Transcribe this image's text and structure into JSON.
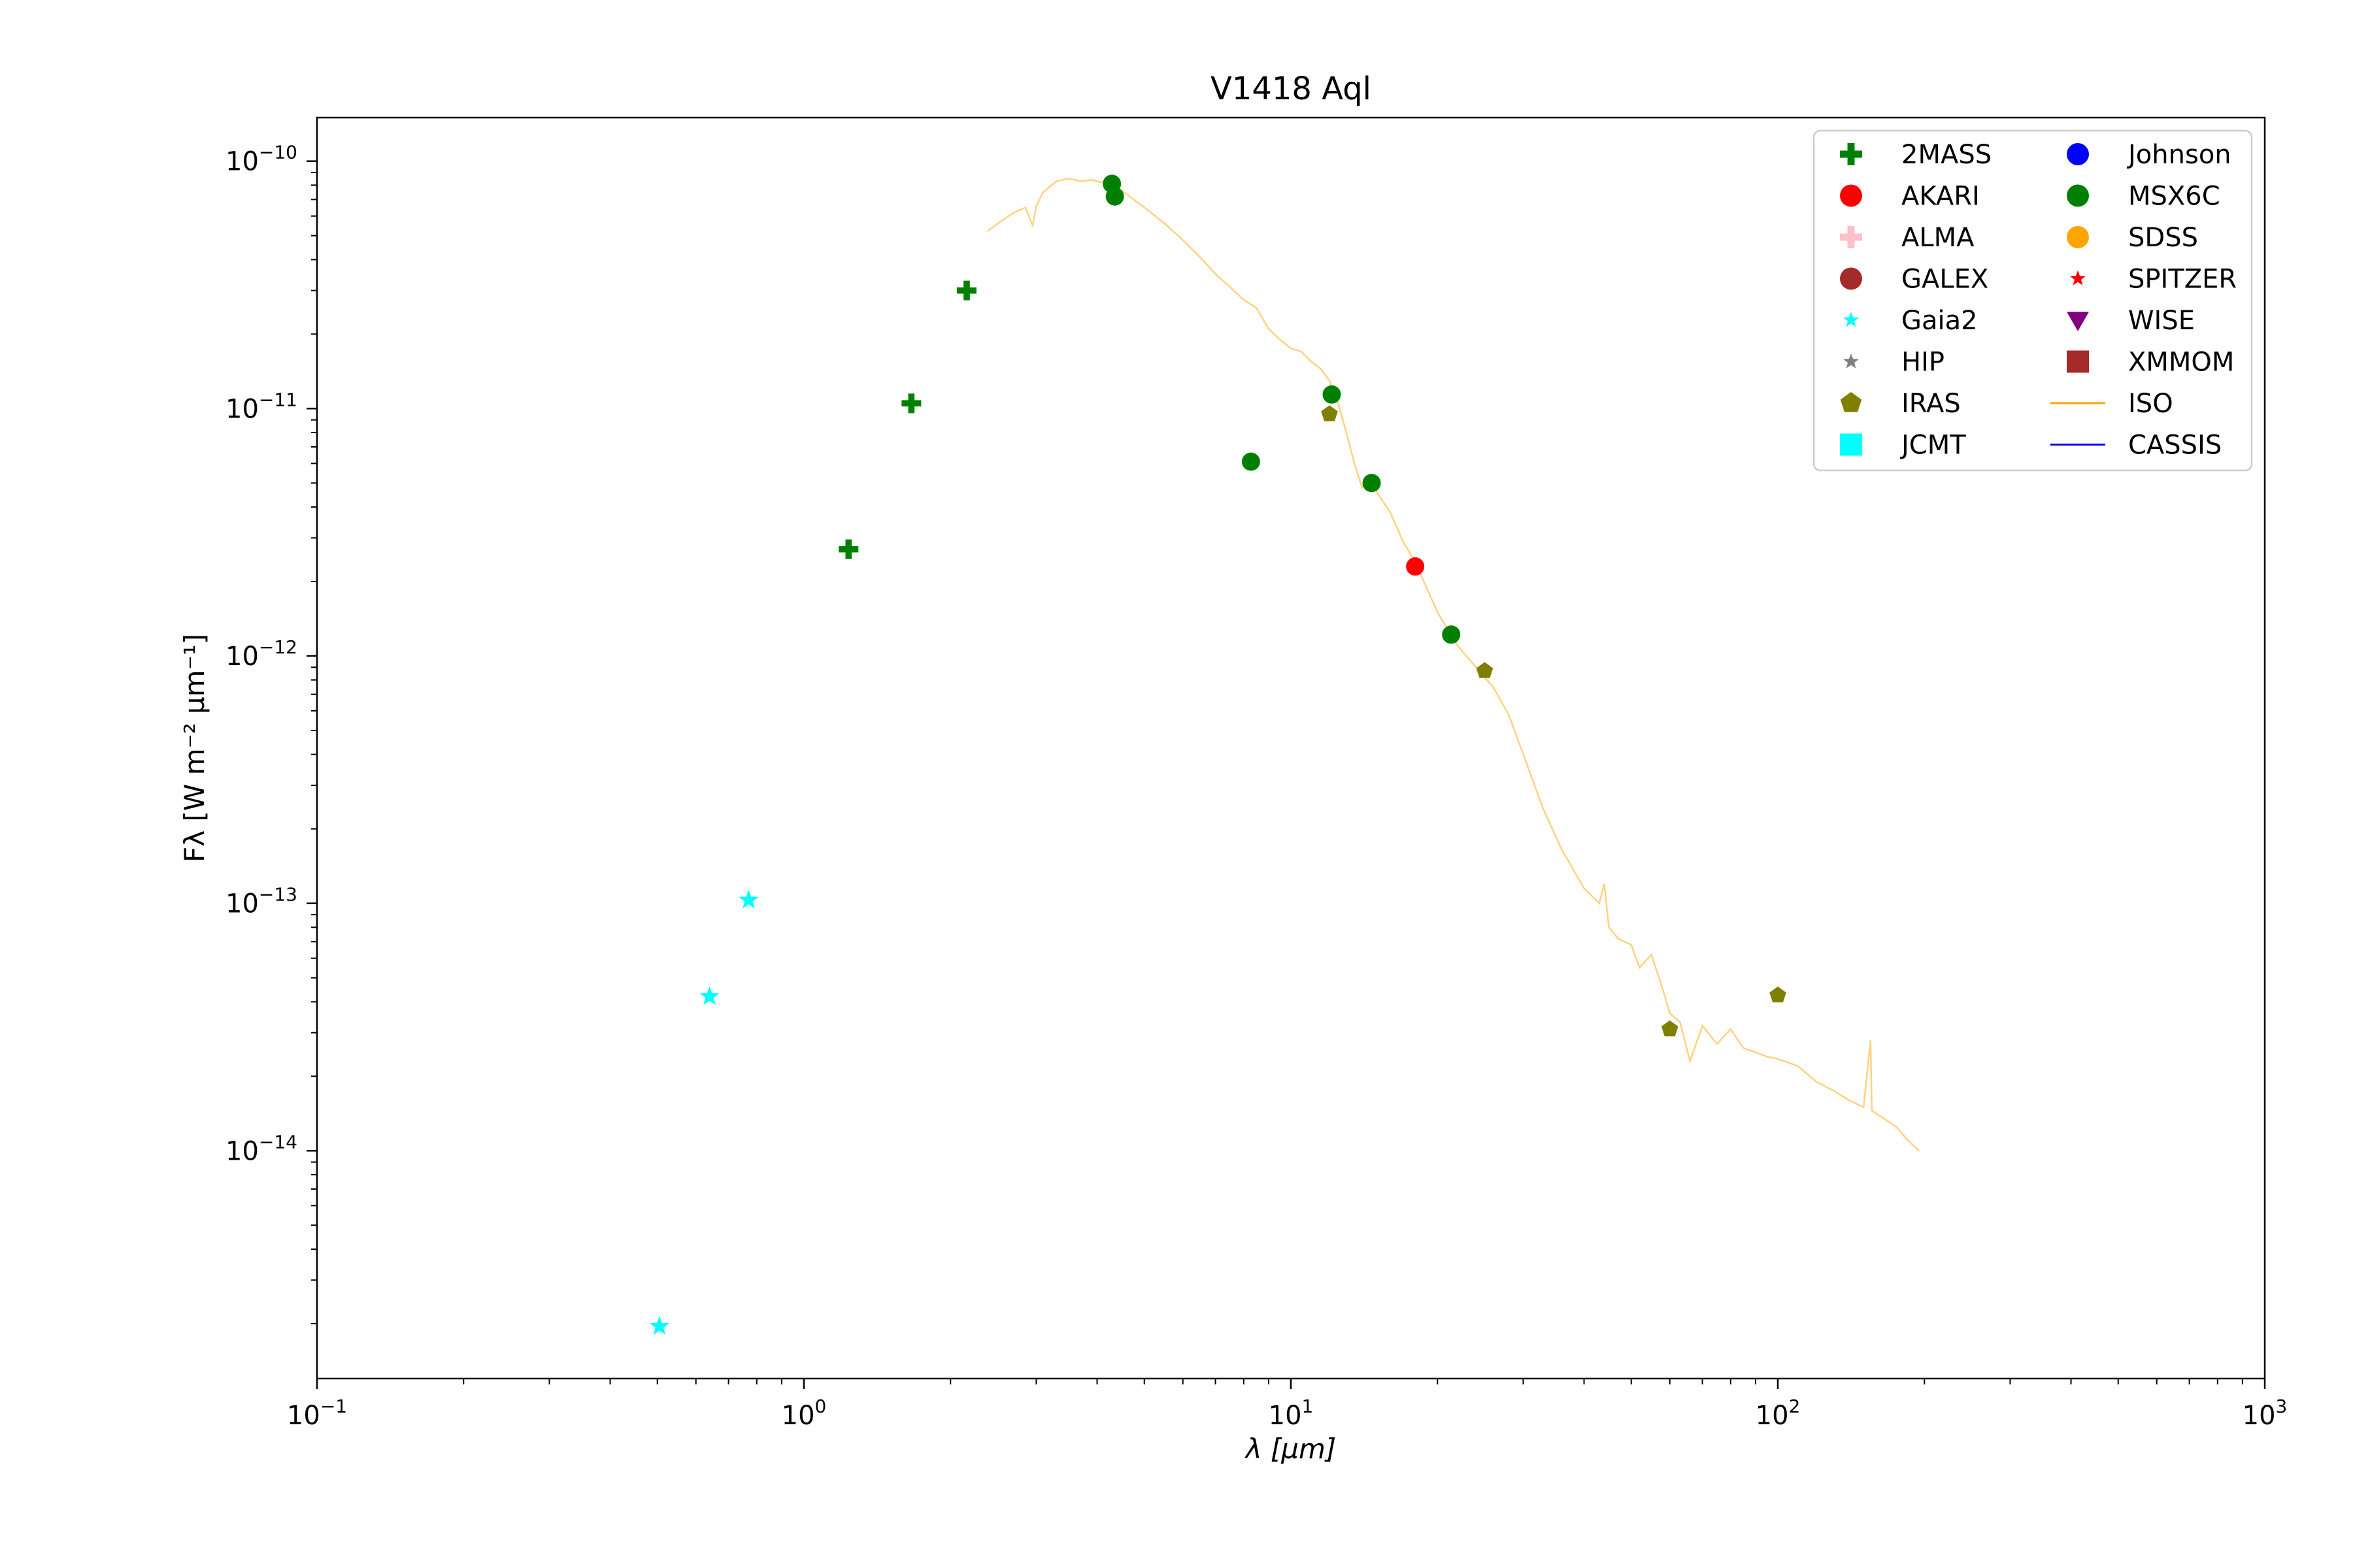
{
  "chart_data": {
    "type": "scatter",
    "title": "V1418 Aql",
    "xlabel": "λ [μm]",
    "ylabel": "Fλ [W m⁻² μm⁻¹]",
    "xscale": "log",
    "yscale": "log",
    "xlim": [
      0.1,
      1000
    ],
    "ylim": [
      1.2e-15,
      1.5e-10
    ],
    "x_ticks": [
      {
        "value": 0.1,
        "base": "10",
        "exp": "−1"
      },
      {
        "value": 1,
        "base": "10",
        "exp": "0"
      },
      {
        "value": 10,
        "base": "10",
        "exp": "1"
      },
      {
        "value": 100,
        "base": "10",
        "exp": "2"
      },
      {
        "value": 1000,
        "base": "10",
        "exp": "3"
      }
    ],
    "y_ticks": [
      {
        "value": 1e-14,
        "base": "10",
        "exp": "−14"
      },
      {
        "value": 1e-13,
        "base": "10",
        "exp": "−13"
      },
      {
        "value": 1e-12,
        "base": "10",
        "exp": "−12"
      },
      {
        "value": 1e-11,
        "base": "10",
        "exp": "−11"
      },
      {
        "value": 1e-10,
        "base": "10",
        "exp": "−10"
      }
    ],
    "grid": false,
    "legend_position": "top-right",
    "legend": [
      {
        "name": "2MASS",
        "marker": "plus",
        "color": "#008000"
      },
      {
        "name": "AKARI",
        "marker": "circle",
        "color": "#ff0000"
      },
      {
        "name": "ALMA",
        "marker": "plus",
        "color": "#ffc0cb"
      },
      {
        "name": "GALEX",
        "marker": "circle",
        "color": "#a52a2a"
      },
      {
        "name": "Gaia2",
        "marker": "star",
        "color": "#00ffff"
      },
      {
        "name": "HIP",
        "marker": "star",
        "color": "#808080"
      },
      {
        "name": "IRAS",
        "marker": "pentagon",
        "color": "#808000"
      },
      {
        "name": "JCMT",
        "marker": "square",
        "color": "#00ffff"
      },
      {
        "name": "Johnson",
        "marker": "circle",
        "color": "#0000ff"
      },
      {
        "name": "MSX6C",
        "marker": "circle",
        "color": "#008000"
      },
      {
        "name": "SDSS",
        "marker": "circle",
        "color": "#ffa500"
      },
      {
        "name": "SPITZER",
        "marker": "star",
        "color": "#ff0000"
      },
      {
        "name": "WISE",
        "marker": "triangle-down",
        "color": "#800080"
      },
      {
        "name": "XMMOM",
        "marker": "square",
        "color": "#a52a2a"
      },
      {
        "name": "ISO",
        "marker": "line",
        "color": "#ffa500"
      },
      {
        "name": "CASSIS",
        "marker": "line",
        "color": "#0000ff"
      }
    ],
    "series": [
      {
        "name": "2MASS",
        "marker": "plus",
        "color": "#008000",
        "size": 30,
        "points": [
          [
            1.235,
            2.7e-12
          ],
          [
            1.662,
            1.05e-11
          ],
          [
            2.159,
            3e-11
          ]
        ]
      },
      {
        "name": "Gaia2",
        "marker": "star",
        "color": "#00ffff",
        "size": 30,
        "points": [
          [
            0.505,
            1.95e-15
          ],
          [
            0.64,
            4.2e-14
          ],
          [
            0.77,
            1.03e-13
          ]
        ]
      },
      {
        "name": "MSX6C",
        "marker": "circle",
        "color": "#008000",
        "size": 28,
        "points": [
          [
            4.29,
            8.1e-11
          ],
          [
            4.35,
            7.2e-11
          ],
          [
            8.28,
            6.1e-12
          ],
          [
            12.13,
            1.14e-11
          ],
          [
            14.65,
            5e-12
          ],
          [
            21.34,
            1.22e-12
          ]
        ]
      },
      {
        "name": "AKARI",
        "marker": "circle",
        "color": "#ff0000",
        "size": 28,
        "points": [
          [
            18.0,
            2.3e-12
          ]
        ]
      },
      {
        "name": "IRAS",
        "marker": "pentagon",
        "color": "#808000",
        "size": 27,
        "points": [
          [
            12.0,
            9.5e-12
          ],
          [
            25.0,
            8.7e-13
          ],
          [
            60.0,
            3.1e-14
          ],
          [
            100.0,
            4.25e-14
          ]
        ]
      }
    ],
    "spectrum": {
      "name": "ISO",
      "color": "#ffa500",
      "points": [
        [
          2.38,
          5.2e-11
        ],
        [
          2.5,
          5.6e-11
        ],
        [
          2.7,
          6.2e-11
        ],
        [
          2.85,
          6.5e-11
        ],
        [
          2.95,
          5.5e-11
        ],
        [
          3.0,
          6.6e-11
        ],
        [
          3.1,
          7.5e-11
        ],
        [
          3.3,
          8.3e-11
        ],
        [
          3.5,
          8.5e-11
        ],
        [
          3.7,
          8.3e-11
        ],
        [
          3.9,
          8.4e-11
        ],
        [
          4.1,
          8.2e-11
        ],
        [
          4.5,
          7.6e-11
        ],
        [
          5.0,
          6.5e-11
        ],
        [
          5.5,
          5.6e-11
        ],
        [
          6.0,
          4.8e-11
        ],
        [
          6.5,
          4.1e-11
        ],
        [
          7.0,
          3.5e-11
        ],
        [
          7.5,
          3.1e-11
        ],
        [
          8.0,
          2.75e-11
        ],
        [
          8.5,
          2.55e-11
        ],
        [
          9.0,
          2.1e-11
        ],
        [
          9.5,
          1.9e-11
        ],
        [
          10.0,
          1.75e-11
        ],
        [
          10.5,
          1.7e-11
        ],
        [
          11.0,
          1.55e-11
        ],
        [
          11.5,
          1.45e-11
        ],
        [
          12.0,
          1.3e-11
        ],
        [
          12.5,
          1.05e-11
        ],
        [
          13.0,
          8e-12
        ],
        [
          13.5,
          6e-12
        ],
        [
          14.0,
          4.8e-12
        ],
        [
          14.5,
          5.2e-12
        ],
        [
          15.0,
          4.6e-12
        ],
        [
          16.0,
          3.8e-12
        ],
        [
          17.0,
          2.9e-12
        ],
        [
          18.0,
          2.4e-12
        ],
        [
          20.0,
          1.5e-12
        ],
        [
          22.0,
          1.1e-12
        ],
        [
          24.0,
          9e-13
        ],
        [
          26.0,
          7.5e-13
        ],
        [
          28.0,
          5.8e-13
        ],
        [
          30.0,
          4e-13
        ],
        [
          33.0,
          2.4e-13
        ],
        [
          36.0,
          1.65e-13
        ],
        [
          40.0,
          1.15e-13
        ],
        [
          43.0,
          1e-13
        ],
        [
          44.0,
          1.2e-13
        ],
        [
          45.0,
          8e-14
        ],
        [
          47.0,
          7.2e-14
        ],
        [
          50.0,
          6.8e-14
        ],
        [
          52.0,
          5.5e-14
        ],
        [
          55.0,
          6.2e-14
        ],
        [
          58.0,
          4.5e-14
        ],
        [
          60.0,
          3.6e-14
        ],
        [
          63.0,
          3.3e-14
        ],
        [
          66.0,
          2.3e-14
        ],
        [
          70.0,
          3.2e-14
        ],
        [
          75.0,
          2.7e-14
        ],
        [
          80.0,
          3.1e-14
        ],
        [
          85.0,
          2.6e-14
        ],
        [
          90.0,
          2.5e-14
        ],
        [
          95.0,
          2.4e-14
        ],
        [
          100.0,
          2.35e-14
        ],
        [
          110.0,
          2.2e-14
        ],
        [
          120.0,
          1.9e-14
        ],
        [
          130.0,
          1.75e-14
        ],
        [
          140.0,
          1.6e-14
        ],
        [
          150.0,
          1.5e-14
        ],
        [
          155.0,
          2.8e-14
        ],
        [
          156.0,
          1.45e-14
        ],
        [
          165.0,
          1.35e-14
        ],
        [
          175.0,
          1.25e-14
        ],
        [
          185.0,
          1.1e-14
        ],
        [
          195.0,
          1e-14
        ]
      ]
    }
  }
}
